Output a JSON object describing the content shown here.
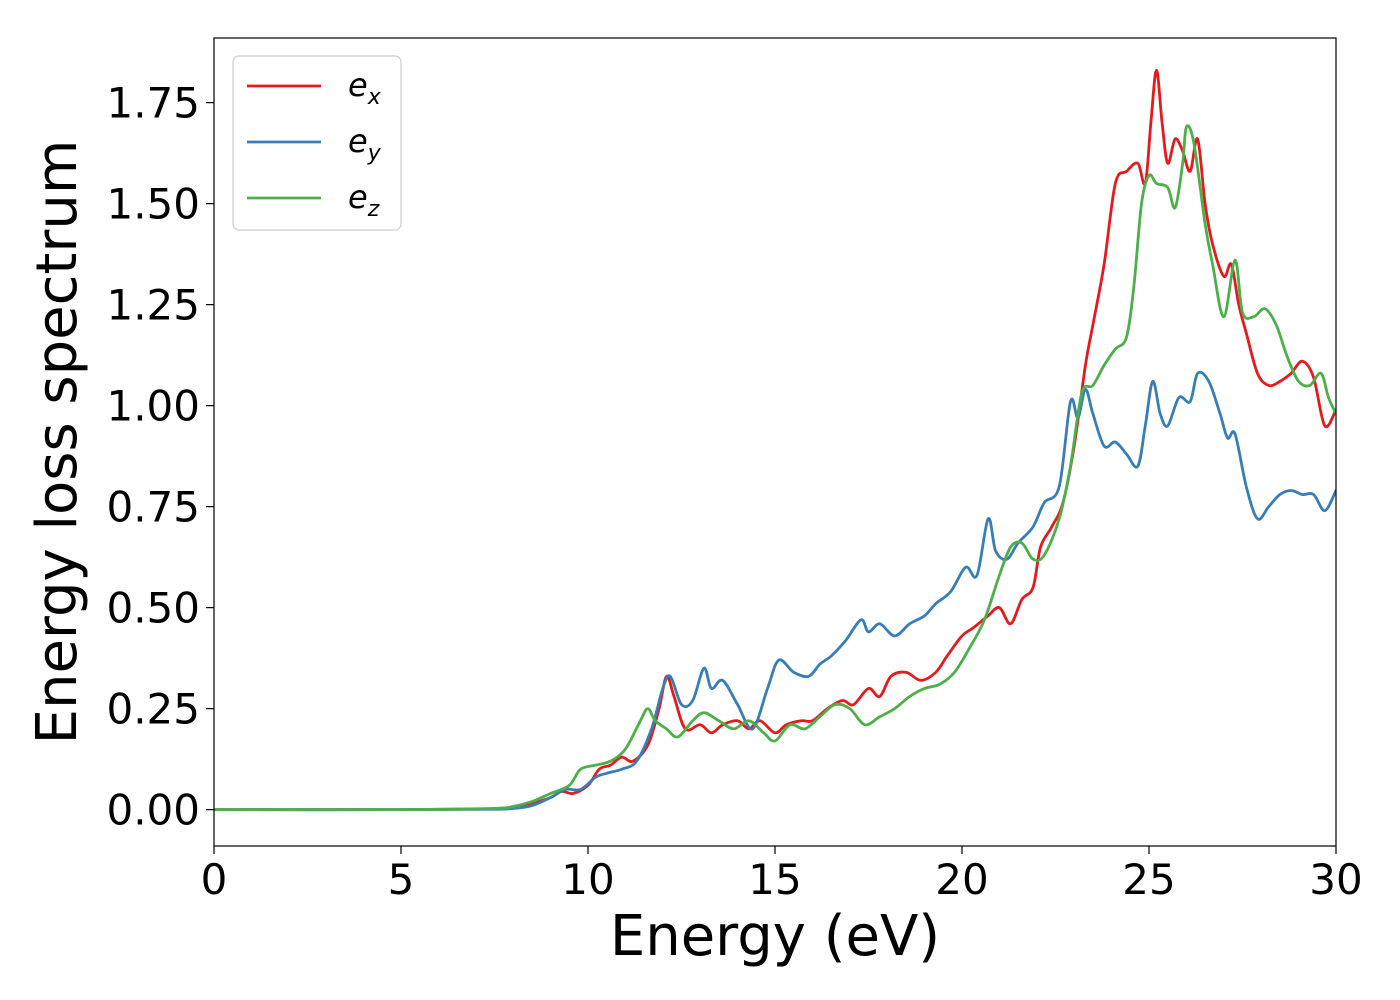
{
  "chart_data": {
    "type": "line",
    "xlabel": "Energy (eV)",
    "ylabel": "Energy loss spectrum",
    "xlim": [
      0,
      30
    ],
    "ylim": [
      -0.09,
      1.91
    ],
    "x_ticks": [
      "0",
      "5",
      "10",
      "15",
      "20",
      "25",
      "30"
    ],
    "y_ticks": [
      "0.00",
      "0.25",
      "0.50",
      "0.75",
      "1.00",
      "1.25",
      "1.50",
      "1.75"
    ],
    "grid": false,
    "legend_position": "upper-left",
    "series": [
      {
        "name": "e_x",
        "legend_base": "e",
        "legend_sub": "x",
        "color": "#e41a1c",
        "points": [
          [
            0,
            0
          ],
          [
            5,
            0
          ],
          [
            7.5,
            0.002
          ],
          [
            8,
            0.005
          ],
          [
            8.5,
            0.015
          ],
          [
            9,
            0.03
          ],
          [
            9.3,
            0.045
          ],
          [
            9.6,
            0.04
          ],
          [
            10,
            0.06
          ],
          [
            10.3,
            0.1
          ],
          [
            10.6,
            0.11
          ],
          [
            10.9,
            0.13
          ],
          [
            11.2,
            0.12
          ],
          [
            11.6,
            0.16
          ],
          [
            11.9,
            0.25
          ],
          [
            12.1,
            0.33
          ],
          [
            12.3,
            0.28
          ],
          [
            12.6,
            0.2
          ],
          [
            13,
            0.21
          ],
          [
            13.3,
            0.19
          ],
          [
            13.6,
            0.21
          ],
          [
            14,
            0.22
          ],
          [
            14.3,
            0.2
          ],
          [
            14.6,
            0.22
          ],
          [
            15,
            0.19
          ],
          [
            15.3,
            0.21
          ],
          [
            15.7,
            0.22
          ],
          [
            16,
            0.22
          ],
          [
            16.4,
            0.25
          ],
          [
            16.8,
            0.27
          ],
          [
            17.1,
            0.26
          ],
          [
            17.5,
            0.3
          ],
          [
            17.8,
            0.28
          ],
          [
            18.1,
            0.33
          ],
          [
            18.5,
            0.34
          ],
          [
            18.9,
            0.32
          ],
          [
            19.3,
            0.34
          ],
          [
            19.6,
            0.38
          ],
          [
            20,
            0.43
          ],
          [
            20.3,
            0.45
          ],
          [
            20.7,
            0.48
          ],
          [
            21,
            0.5
          ],
          [
            21.3,
            0.46
          ],
          [
            21.6,
            0.52
          ],
          [
            21.9,
            0.55
          ],
          [
            22.1,
            0.65
          ],
          [
            22.4,
            0.7
          ],
          [
            22.7,
            0.76
          ],
          [
            23,
            0.9
          ],
          [
            23.3,
            1.1
          ],
          [
            23.5,
            1.2
          ],
          [
            23.8,
            1.35
          ],
          [
            24.1,
            1.55
          ],
          [
            24.4,
            1.58
          ],
          [
            24.7,
            1.6
          ],
          [
            24.9,
            1.55
          ],
          [
            25.05,
            1.7
          ],
          [
            25.2,
            1.83
          ],
          [
            25.35,
            1.7
          ],
          [
            25.5,
            1.6
          ],
          [
            25.7,
            1.66
          ],
          [
            25.9,
            1.63
          ],
          [
            26.1,
            1.58
          ],
          [
            26.3,
            1.66
          ],
          [
            26.5,
            1.5
          ],
          [
            26.7,
            1.4
          ],
          [
            27,
            1.32
          ],
          [
            27.2,
            1.35
          ],
          [
            27.4,
            1.25
          ],
          [
            27.6,
            1.18
          ],
          [
            27.9,
            1.08
          ],
          [
            28.2,
            1.05
          ],
          [
            28.5,
            1.06
          ],
          [
            28.8,
            1.08
          ],
          [
            29.1,
            1.11
          ],
          [
            29.4,
            1.07
          ],
          [
            29.7,
            0.95
          ],
          [
            30,
            0.99
          ]
        ]
      },
      {
        "name": "e_y",
        "legend_base": "e",
        "legend_sub": "y",
        "color": "#377eb8",
        "points": [
          [
            0,
            0
          ],
          [
            5,
            0
          ],
          [
            7.5,
            0.001
          ],
          [
            8,
            0.003
          ],
          [
            8.5,
            0.01
          ],
          [
            9,
            0.03
          ],
          [
            9.4,
            0.05
          ],
          [
            9.8,
            0.05
          ],
          [
            10.2,
            0.08
          ],
          [
            10.5,
            0.09
          ],
          [
            10.9,
            0.1
          ],
          [
            11.3,
            0.12
          ],
          [
            11.7,
            0.2
          ],
          [
            12,
            0.3
          ],
          [
            12.2,
            0.33
          ],
          [
            12.5,
            0.26
          ],
          [
            12.8,
            0.27
          ],
          [
            13.1,
            0.35
          ],
          [
            13.3,
            0.3
          ],
          [
            13.6,
            0.32
          ],
          [
            14,
            0.26
          ],
          [
            14.4,
            0.2
          ],
          [
            14.8,
            0.3
          ],
          [
            15.1,
            0.37
          ],
          [
            15.5,
            0.34
          ],
          [
            15.9,
            0.33
          ],
          [
            16.2,
            0.36
          ],
          [
            16.5,
            0.38
          ],
          [
            16.9,
            0.42
          ],
          [
            17.3,
            0.47
          ],
          [
            17.5,
            0.44
          ],
          [
            17.8,
            0.46
          ],
          [
            18.2,
            0.43
          ],
          [
            18.6,
            0.46
          ],
          [
            19,
            0.48
          ],
          [
            19.3,
            0.51
          ],
          [
            19.7,
            0.54
          ],
          [
            20.1,
            0.6
          ],
          [
            20.4,
            0.58
          ],
          [
            20.7,
            0.72
          ],
          [
            20.9,
            0.64
          ],
          [
            21.2,
            0.62
          ],
          [
            21.5,
            0.66
          ],
          [
            21.9,
            0.7
          ],
          [
            22.2,
            0.76
          ],
          [
            22.6,
            0.8
          ],
          [
            22.9,
            1.01
          ],
          [
            23.1,
            0.97
          ],
          [
            23.3,
            1.04
          ],
          [
            23.5,
            0.98
          ],
          [
            23.8,
            0.9
          ],
          [
            24.1,
            0.91
          ],
          [
            24.4,
            0.88
          ],
          [
            24.7,
            0.85
          ],
          [
            24.9,
            0.95
          ],
          [
            25.1,
            1.06
          ],
          [
            25.3,
            0.98
          ],
          [
            25.5,
            0.95
          ],
          [
            25.8,
            1.02
          ],
          [
            26.1,
            1.01
          ],
          [
            26.3,
            1.08
          ],
          [
            26.6,
            1.06
          ],
          [
            26.9,
            0.98
          ],
          [
            27.1,
            0.92
          ],
          [
            27.3,
            0.93
          ],
          [
            27.6,
            0.8
          ],
          [
            27.9,
            0.72
          ],
          [
            28.2,
            0.75
          ],
          [
            28.5,
            0.78
          ],
          [
            28.8,
            0.79
          ],
          [
            29.1,
            0.78
          ],
          [
            29.4,
            0.78
          ],
          [
            29.7,
            0.74
          ],
          [
            30,
            0.79
          ]
        ]
      },
      {
        "name": "e_z",
        "legend_base": "e",
        "legend_sub": "z",
        "color": "#4daf4a",
        "points": [
          [
            0,
            0
          ],
          [
            5,
            0
          ],
          [
            7.5,
            0.003
          ],
          [
            8,
            0.008
          ],
          [
            8.5,
            0.02
          ],
          [
            9,
            0.04
          ],
          [
            9.5,
            0.06
          ],
          [
            9.8,
            0.1
          ],
          [
            10.2,
            0.11
          ],
          [
            10.6,
            0.12
          ],
          [
            11,
            0.15
          ],
          [
            11.4,
            0.22
          ],
          [
            11.6,
            0.25
          ],
          [
            11.8,
            0.22
          ],
          [
            12.1,
            0.2
          ],
          [
            12.4,
            0.18
          ],
          [
            12.8,
            0.22
          ],
          [
            13.1,
            0.24
          ],
          [
            13.5,
            0.22
          ],
          [
            13.9,
            0.2
          ],
          [
            14.3,
            0.22
          ],
          [
            14.7,
            0.19
          ],
          [
            15,
            0.17
          ],
          [
            15.4,
            0.21
          ],
          [
            15.8,
            0.2
          ],
          [
            16.2,
            0.23
          ],
          [
            16.6,
            0.26
          ],
          [
            17,
            0.25
          ],
          [
            17.4,
            0.21
          ],
          [
            17.8,
            0.23
          ],
          [
            18.2,
            0.25
          ],
          [
            18.6,
            0.28
          ],
          [
            19,
            0.3
          ],
          [
            19.4,
            0.31
          ],
          [
            19.8,
            0.34
          ],
          [
            20.2,
            0.4
          ],
          [
            20.6,
            0.47
          ],
          [
            21,
            0.58
          ],
          [
            21.3,
            0.65
          ],
          [
            21.6,
            0.66
          ],
          [
            21.9,
            0.62
          ],
          [
            22.2,
            0.63
          ],
          [
            22.6,
            0.72
          ],
          [
            22.9,
            0.85
          ],
          [
            23.2,
            1.03
          ],
          [
            23.5,
            1.05
          ],
          [
            23.8,
            1.1
          ],
          [
            24.1,
            1.14
          ],
          [
            24.4,
            1.17
          ],
          [
            24.6,
            1.3
          ],
          [
            24.8,
            1.5
          ],
          [
            25,
            1.57
          ],
          [
            25.2,
            1.55
          ],
          [
            25.5,
            1.54
          ],
          [
            25.7,
            1.49
          ],
          [
            25.9,
            1.6
          ],
          [
            26,
            1.69
          ],
          [
            26.2,
            1.65
          ],
          [
            26.5,
            1.45
          ],
          [
            26.7,
            1.35
          ],
          [
            27,
            1.22
          ],
          [
            27.3,
            1.36
          ],
          [
            27.5,
            1.23
          ],
          [
            27.8,
            1.22
          ],
          [
            28.1,
            1.24
          ],
          [
            28.4,
            1.2
          ],
          [
            28.7,
            1.12
          ],
          [
            29,
            1.06
          ],
          [
            29.3,
            1.05
          ],
          [
            29.6,
            1.08
          ],
          [
            29.8,
            1.02
          ],
          [
            30,
            0.98
          ]
        ]
      }
    ]
  }
}
